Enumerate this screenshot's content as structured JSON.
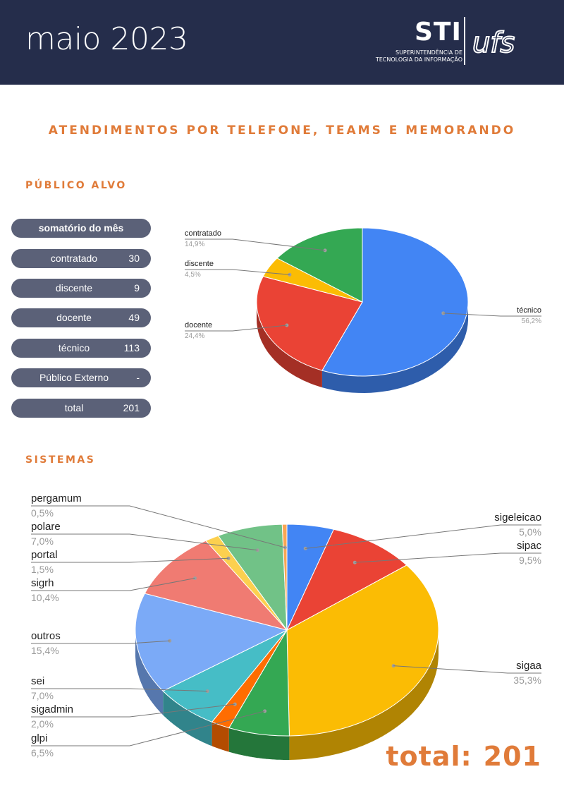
{
  "header": {
    "month": "maio 2023",
    "logo_main": "STI",
    "logo_line1": "SUPERINTENDÊNCIA DE",
    "logo_line2": "TECNOLOGIA DA INFORMAÇÃO",
    "logo_mark": "ufs"
  },
  "title": "ATENDIMENTOS POR TELEFONE, TEAMS E MEMORANDO",
  "publico": {
    "section_title": "PÚBLICO ALVO",
    "header_label": "somatório do mês",
    "rows": [
      {
        "label": "contratado",
        "value": "30"
      },
      {
        "label": "discente",
        "value": "9"
      },
      {
        "label": "docente",
        "value": "49"
      },
      {
        "label": "técnico",
        "value": "113"
      },
      {
        "label": "Público Externo",
        "value": "-"
      },
      {
        "label": "total",
        "value": "201"
      }
    ]
  },
  "sistemas": {
    "section_title": "SISTEMAS"
  },
  "total": {
    "label": "total:",
    "value": "201"
  },
  "colors": {
    "header_bg": "#252d4b",
    "accent": "#e07b39",
    "pill": "#5b6178"
  },
  "chart_data": [
    {
      "type": "pie",
      "title": "",
      "labels": [
        "técnico",
        "docente",
        "discente",
        "contratado"
      ],
      "values": [
        113,
        49,
        9,
        30
      ],
      "percent_labels": [
        "56,2%",
        "24,4%",
        "4,5%",
        "14,9%"
      ],
      "colors": [
        "#4285f4",
        "#ea4335",
        "#fbbc04",
        "#34a853"
      ]
    },
    {
      "type": "pie",
      "title": "",
      "labels": [
        "sigeleicao",
        "sipac",
        "sigaa",
        "glpi",
        "sigadmin",
        "sei",
        "outros",
        "sigrh",
        "portal",
        "polare",
        "pergamum"
      ],
      "values": [
        5.0,
        9.5,
        35.3,
        6.5,
        2.0,
        7.0,
        15.4,
        10.4,
        1.5,
        7.0,
        0.5
      ],
      "percent_labels": [
        "5,0%",
        "9,5%",
        "35,3%",
        "6,5%",
        "2,0%",
        "7,0%",
        "15,4%",
        "10,4%",
        "1,5%",
        "7,0%",
        "0,5%"
      ],
      "colors": [
        "#4285f4",
        "#ea4335",
        "#fbbc04",
        "#34a853",
        "#ff6d01",
        "#46bdc6",
        "#7baaf7",
        "#f07b72",
        "#fcd04f",
        "#71c287",
        "#f8a654"
      ]
    }
  ]
}
